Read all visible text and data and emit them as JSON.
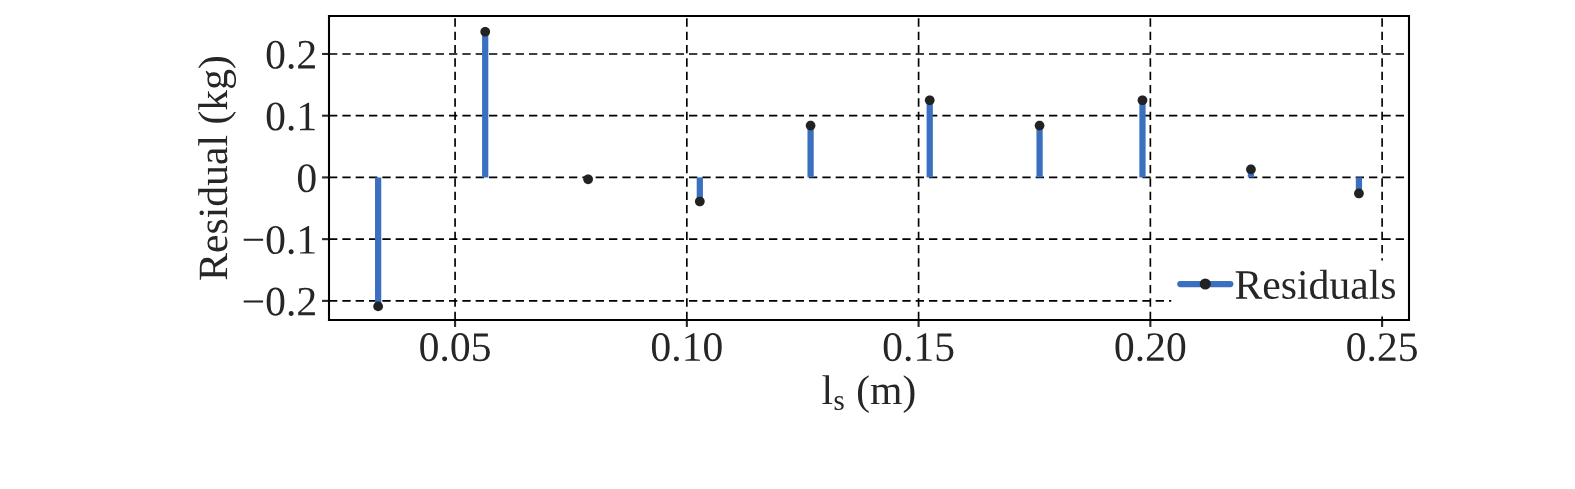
{
  "chart_data": {
    "type": "lollipop",
    "xlabel": "l$_{s}$ (m)",
    "ylabel": "Residual (kg)",
    "x": [
      0.0334,
      0.0565,
      0.0787,
      0.1028,
      0.1267,
      0.1524,
      0.1761,
      0.1983,
      0.2217,
      0.245
    ],
    "series": [
      {
        "name": "Residuals",
        "color": "#3a70bf",
        "colors": [
          "#222222",
          "#222222",
          "#222222",
          "#222222",
          "#222222",
          "#222222",
          "#222222",
          "#222222",
          "#222222",
          "#222222"
        ],
        "values": [
          -0.209,
          0.236,
          -0.003,
          -0.039,
          0.084,
          0.125,
          0.084,
          0.125,
          0.013,
          -0.026
        ]
      }
    ],
    "marker": "circle",
    "xlim": [
      0.0228,
      0.2558
    ],
    "ylim": [
      -0.231,
      0.2615
    ],
    "xticks": [
      0.05,
      {
        "value": 0.1,
        "label": "0.10"
      },
      0.15,
      {
        "value": 0.2,
        "label": "0.20"
      },
      0.25
    ],
    "yticks": [
      {
        "value": -0.2,
        "label": "−0.2"
      },
      {
        "value": -0.1,
        "label": "−0.1"
      },
      0,
      0.1,
      0.2
    ],
    "grid": true,
    "legend": "bottom right"
  }
}
